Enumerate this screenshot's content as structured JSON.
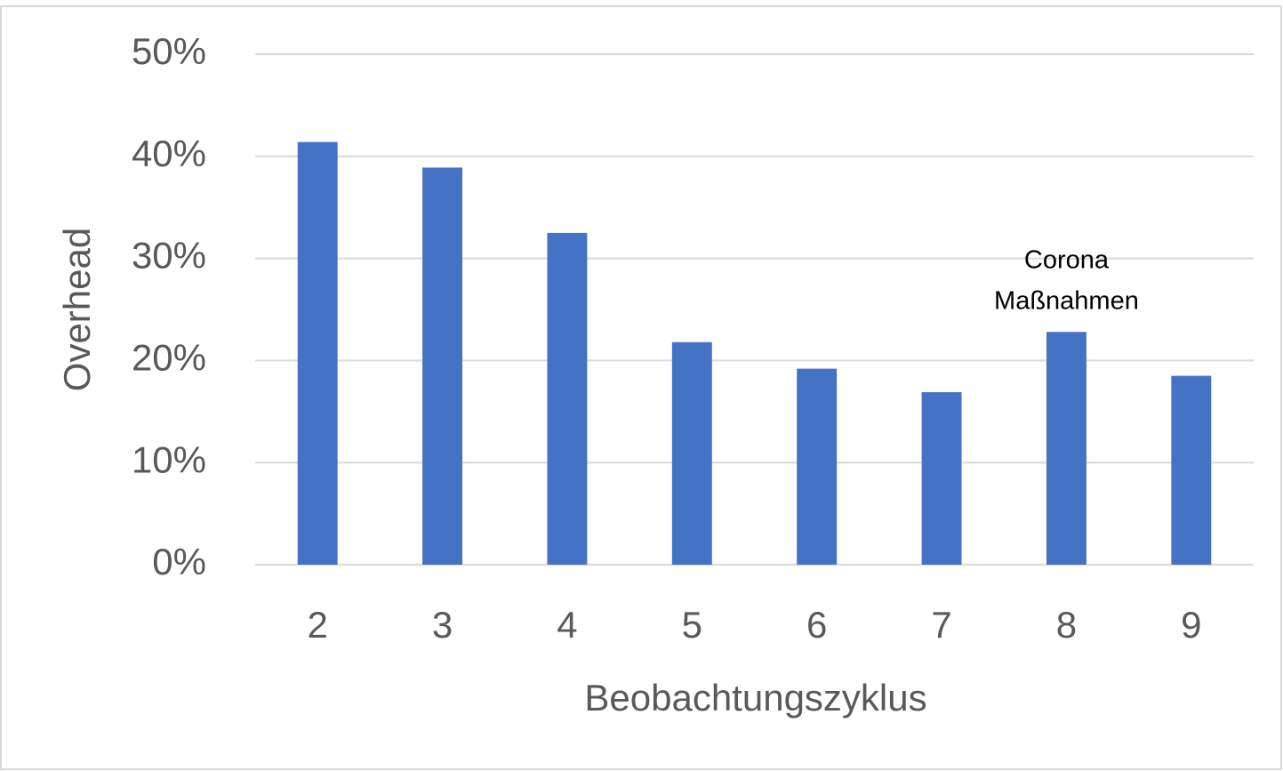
{
  "chart_data": {
    "type": "bar",
    "categories": [
      "2",
      "3",
      "4",
      "5",
      "6",
      "7",
      "8",
      "9"
    ],
    "values": [
      41.4,
      38.9,
      32.5,
      21.8,
      19.2,
      16.9,
      22.8,
      18.5
    ],
    "color": "#4472c4",
    "xlabel": "Beobachtungszyklus",
    "ylabel": "Overhead",
    "ylim": [
      0,
      50
    ],
    "yticks": [
      {
        "value": 0,
        "label": "0%"
      },
      {
        "value": 10,
        "label": "10%"
      },
      {
        "value": 20,
        "label": "20%"
      },
      {
        "value": 30,
        "label": "30%"
      },
      {
        "value": 40,
        "label": "40%"
      },
      {
        "value": 50,
        "label": "50%"
      }
    ],
    "grid": true,
    "annotation": [
      "Corona",
      "Maßnahmen"
    ]
  }
}
